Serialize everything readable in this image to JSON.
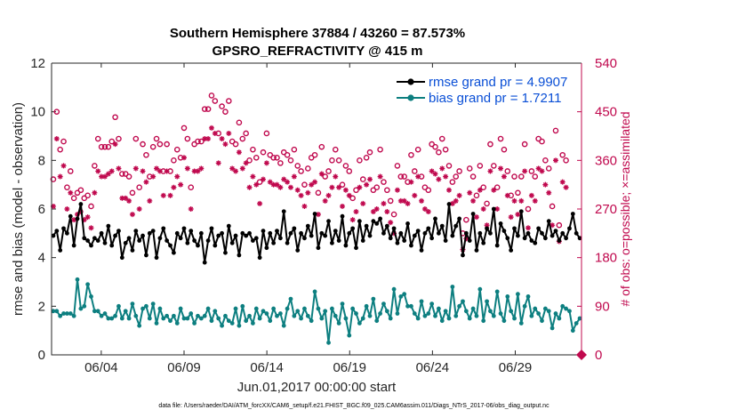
{
  "chart_data": {
    "type": "line",
    "title_line1": "Southern Hemisphere 37884 / 43260 = 87.573%",
    "title_line2": "GPSRO_REFRACTIVITY @ 415 m",
    "xlabel": "Jun.01,2017 00:00:00 start",
    "ylabel": "rmse and bias (model - observation)",
    "ylabel_right": "# of obs: o=possible; ×=assimilated",
    "footnote": "data file: /Users/raeder/DAI/ATM_forcXX/CAM6_setup/f.e21.FHIST_BGC.f09_025.CAM6assim.011/Diags_NTrS_2017-06/obs_diag_output.nc",
    "xlim": [
      1,
      33
    ],
    "ylim": [
      0,
      12
    ],
    "ylim_right": [
      0,
      540
    ],
    "x_ticks": [
      4,
      9,
      14,
      19,
      24,
      29
    ],
    "x_tick_labels": [
      "06/04",
      "06/09",
      "06/14",
      "06/19",
      "06/24",
      "06/29"
    ],
    "y_ticks": [
      0,
      2,
      4,
      6,
      8,
      10,
      12
    ],
    "y_tick_labels": [
      "0",
      "2",
      "4",
      "6",
      "8",
      "10",
      "12"
    ],
    "y_right_ticks": [
      0,
      90,
      180,
      270,
      360,
      450,
      540
    ],
    "y_right_tick_labels": [
      "0",
      "90",
      "180",
      "270",
      "360",
      "450",
      "540"
    ],
    "colors": {
      "rmse": "#000000",
      "bias": "#0d7f80",
      "counts": "#c0094e",
      "axis_right": "#c0094e",
      "legend_text": "#0a4fd6"
    },
    "series": [
      {
        "name": "rmse",
        "legend": "rmse grand pr = 4.9907",
        "values": [
          4.9,
          5.1,
          4.3,
          5.2,
          5.0,
          5.7,
          4.5,
          5.6,
          6.2,
          4.8,
          4.7,
          4.5,
          4.8,
          4.7,
          5.0,
          4.6,
          5.3,
          4.5,
          4.9,
          5.1,
          4.0,
          4.6,
          4.8,
          4.3,
          5.1,
          4.7,
          4.9,
          4.1,
          5.0,
          5.1,
          4.0,
          4.8,
          5.2,
          4.7,
          4.5,
          4.2,
          5.0,
          4.8,
          5.2,
          4.6,
          5.1,
          4.7,
          4.5,
          5.0,
          3.8,
          4.7,
          5.2,
          4.5,
          4.9,
          5.0,
          4.2,
          5.3,
          4.6,
          4.9,
          4.1,
          5.0,
          4.9,
          5.0,
          4.7,
          4.8,
          4.0,
          5.1,
          4.4,
          5.0,
          4.6,
          5.1,
          4.8,
          5.9,
          4.6,
          5.0,
          5.2,
          4.3,
          5.0,
          4.8,
          5.3,
          4.9,
          5.8,
          4.4,
          5.0,
          4.9,
          5.5,
          4.6,
          5.1,
          4.7,
          5.7,
          4.5,
          5.0,
          5.2,
          4.4,
          5.5,
          4.7,
          5.3,
          4.9,
          5.5,
          5.4,
          5.6,
          5.0,
          5.3,
          4.8,
          5.2,
          4.6,
          5.0,
          4.7,
          5.4,
          4.5,
          4.9,
          5.1,
          4.3,
          5.0,
          5.2,
          4.8,
          5.6,
          5.0,
          5.3,
          4.7,
          6.2,
          4.9,
          5.3,
          5.6,
          4.1,
          5.0,
          4.7,
          5.8,
          4.3,
          5.0,
          4.6,
          5.2,
          5.0,
          6.0,
          4.5,
          5.4,
          5.1,
          4.8,
          4.3,
          5.2,
          4.9,
          5.9,
          4.8,
          5.0,
          4.7,
          4.6,
          5.2,
          5.0,
          4.8,
          5.5,
          4.9,
          5.1,
          4.7,
          5.0,
          4.8,
          5.2,
          5.8,
          5.0,
          4.8
        ]
      },
      {
        "name": "bias",
        "legend": "bias grand pr = 1.7211",
        "values": [
          1.8,
          1.8,
          1.6,
          1.7,
          1.7,
          1.7,
          1.6,
          3.1,
          1.9,
          2.0,
          2.9,
          2.4,
          1.8,
          1.8,
          1.6,
          1.7,
          1.5,
          1.5,
          1.6,
          2.0,
          1.5,
          1.8,
          1.5,
          2.1,
          1.6,
          1.2,
          1.9,
          2.0,
          1.5,
          2.1,
          1.3,
          1.9,
          1.5,
          1.6,
          1.4,
          1.6,
          1.3,
          1.9,
          1.5,
          1.5,
          1.7,
          1.3,
          1.6,
          1.5,
          1.6,
          1.9,
          1.4,
          1.8,
          1.5,
          1.2,
          1.6,
          1.4,
          1.3,
          1.9,
          1.2,
          2.0,
          1.4,
          1.6,
          1.3,
          1.9,
          1.5,
          1.8,
          1.7,
          1.4,
          1.9,
          1.6,
          1.7,
          1.2,
          1.9,
          2.3,
          1.6,
          1.8,
          1.5,
          1.9,
          1.6,
          1.4,
          2.6,
          1.9,
          1.5,
          1.8,
          0.5,
          1.9,
          1.6,
          1.3,
          2.1,
          1.5,
          0.8,
          1.9,
          1.7,
          1.3,
          1.5,
          2.0,
          1.6,
          2.3,
          1.4,
          1.7,
          2.1,
          1.8,
          1.5,
          2.7,
          1.7,
          2.4,
          2.5,
          2.0,
          2.0,
          1.7,
          1.5,
          2.2,
          1.6,
          1.7,
          2.1,
          1.6,
          1.9,
          1.4,
          1.8,
          1.5,
          2.8,
          1.6,
          2.0,
          2.2,
          1.8,
          1.5,
          1.9,
          1.6,
          2.7,
          1.4,
          2.2,
          1.8,
          1.6,
          2.6,
          1.7,
          1.4,
          2.4,
          1.8,
          1.5,
          2.5,
          1.3,
          2.0,
          2.4,
          1.6,
          1.9,
          1.7,
          1.4,
          1.9,
          1.8,
          1.1,
          1.7,
          1.5,
          2.0,
          1.9,
          1.8,
          1.0,
          1.3,
          1.5
        ]
      },
      {
        "name": "possible",
        "axis": "right",
        "marker": "o",
        "values": [
          325,
          450,
          380,
          395,
          310,
          340,
          290,
          300,
          305,
          290,
          295,
          275,
          350,
          400,
          385,
          385,
          385,
          395,
          440,
          400,
          335,
          335,
          330,
          300,
          400,
          310,
          390,
          370,
          330,
          385,
          400,
          390,
          340,
          390,
          340,
          360,
          380,
          365,
          420,
          400,
          310,
          390,
          395,
          395,
          455,
          455,
          480,
          470,
          410,
          460,
          450,
          470,
          395,
          390,
          430,
          400,
          410,
          360,
          380,
          365,
          320,
          375,
          410,
          370,
          365,
          365,
          355,
          375,
          370,
          360,
          380,
          350,
          340,
          315,
          345,
          365,
          370,
          300,
          385,
          330,
          340,
          360,
          380,
          360,
          315,
          350,
          340,
          290,
          305,
          360,
          325,
          365,
          375,
          305,
          310,
          380,
          320,
          305,
          285,
          260,
          350,
          330,
          330,
          320,
          370,
          340,
          380,
          330,
          310,
          305,
          390,
          385,
          375,
          400,
          380,
          350,
          320,
          330,
          340,
          225,
          250,
          345,
          330,
          295,
          350,
          310,
          280,
          390,
          350,
          310,
          400,
          380,
          340,
          295,
          330,
          300,
          330,
          390,
          270,
          340,
          330,
          400,
          395,
          360,
          345,
          275,
          415,
          240,
          370,
          360
        ]
      },
      {
        "name": "assimilated",
        "axis": "right",
        "marker": "*",
        "values": [
          275,
          400,
          330,
          350,
          270,
          300,
          250,
          260,
          265,
          250,
          255,
          235,
          300,
          340,
          330,
          330,
          335,
          340,
          390,
          345,
          290,
          290,
          285,
          260,
          345,
          270,
          340,
          320,
          285,
          330,
          345,
          340,
          295,
          340,
          295,
          310,
          330,
          315,
          365,
          345,
          270,
          340,
          340,
          345,
          400,
          400,
          420,
          410,
          355,
          400,
          390,
          410,
          345,
          340,
          375,
          345,
          355,
          310,
          330,
          315,
          280,
          325,
          355,
          320,
          315,
          315,
          310,
          325,
          320,
          310,
          330,
          305,
          295,
          275,
          300,
          315,
          320,
          260,
          335,
          285,
          295,
          310,
          330,
          310,
          275,
          305,
          295,
          250,
          265,
          310,
          280,
          315,
          325,
          265,
          270,
          330,
          280,
          265,
          245,
          225,
          305,
          285,
          285,
          280,
          320,
          295,
          330,
          285,
          270,
          265,
          340,
          335,
          325,
          345,
          330,
          305,
          280,
          285,
          295,
          195,
          215,
          300,
          285,
          255,
          305,
          270,
          240,
          340,
          305,
          270,
          345,
          330,
          295,
          255,
          285,
          260,
          285,
          340,
          235,
          295,
          285,
          345,
          340,
          315,
          300,
          240,
          360,
          210,
          320,
          310
        ]
      }
    ]
  }
}
